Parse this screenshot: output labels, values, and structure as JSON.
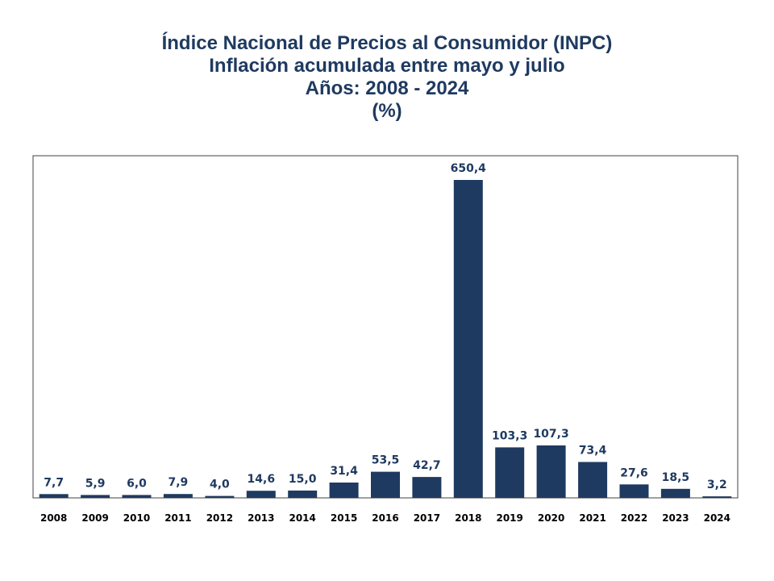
{
  "chart_data": {
    "type": "bar",
    "title": "Índice Nacional de Precios al Consumidor (INPC)",
    "subtitle": "Inflación acumulada entre mayo y julio",
    "subtitle2": "Años: 2008 - 2024",
    "unit": "(%)",
    "xlabel": "",
    "ylabel": "",
    "ylim": [
      0,
      700
    ],
    "grid": false,
    "categories": [
      "2008",
      "2009",
      "2010",
      "2011",
      "2012",
      "2013",
      "2014",
      "2015",
      "2016",
      "2017",
      "2018",
      "2019",
      "2020",
      "2021",
      "2022",
      "2023",
      "2024"
    ],
    "values": [
      7.7,
      5.9,
      6.0,
      7.9,
      4.0,
      14.6,
      15.0,
      31.4,
      53.5,
      42.7,
      650.4,
      103.3,
      107.3,
      73.4,
      27.6,
      18.5,
      3.2
    ],
    "value_labels": [
      "7,7",
      "5,9",
      "6,0",
      "7,9",
      "4,0",
      "14,6",
      "15,0",
      "31,4",
      "53,5",
      "42,7",
      "650,4",
      "103,3",
      "107,3",
      "73,4",
      "27,6",
      "18,5",
      "3,2"
    ],
    "bar_color": "#1f3a60"
  }
}
